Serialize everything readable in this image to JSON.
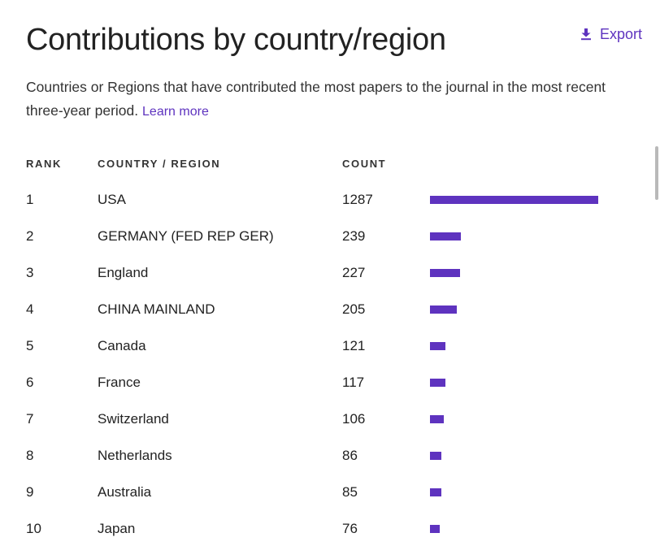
{
  "header": {
    "title": "Contributions by country/region",
    "export_label": "Export",
    "description": "Countries or Regions that have contributed the most papers to the journal in the most recent three-year period.",
    "learn_more": "Learn more"
  },
  "table": {
    "columns": {
      "rank": "RANK",
      "country": "COUNTRY / REGION",
      "count": "COUNT"
    },
    "rows": [
      {
        "rank": "1",
        "country": "USA",
        "count": "1287",
        "value": 1287
      },
      {
        "rank": "2",
        "country": "GERMANY (FED REP GER)",
        "count": "239",
        "value": 239
      },
      {
        "rank": "3",
        "country": "England",
        "count": "227",
        "value": 227
      },
      {
        "rank": "4",
        "country": "CHINA MAINLAND",
        "count": "205",
        "value": 205
      },
      {
        "rank": "5",
        "country": "Canada",
        "count": "121",
        "value": 121
      },
      {
        "rank": "6",
        "country": "France",
        "count": "117",
        "value": 117
      },
      {
        "rank": "7",
        "country": "Switzerland",
        "count": "106",
        "value": 106
      },
      {
        "rank": "8",
        "country": "Netherlands",
        "count": "86",
        "value": 86
      },
      {
        "rank": "9",
        "country": "Australia",
        "count": "85",
        "value": 85
      },
      {
        "rank": "10",
        "country": "Japan",
        "count": "76",
        "value": 76
      }
    ]
  },
  "icons": {
    "export": "download-icon"
  },
  "colors": {
    "accent": "#5e33bf",
    "text": "#222222",
    "scrollbar": "#b9b9b9"
  }
}
